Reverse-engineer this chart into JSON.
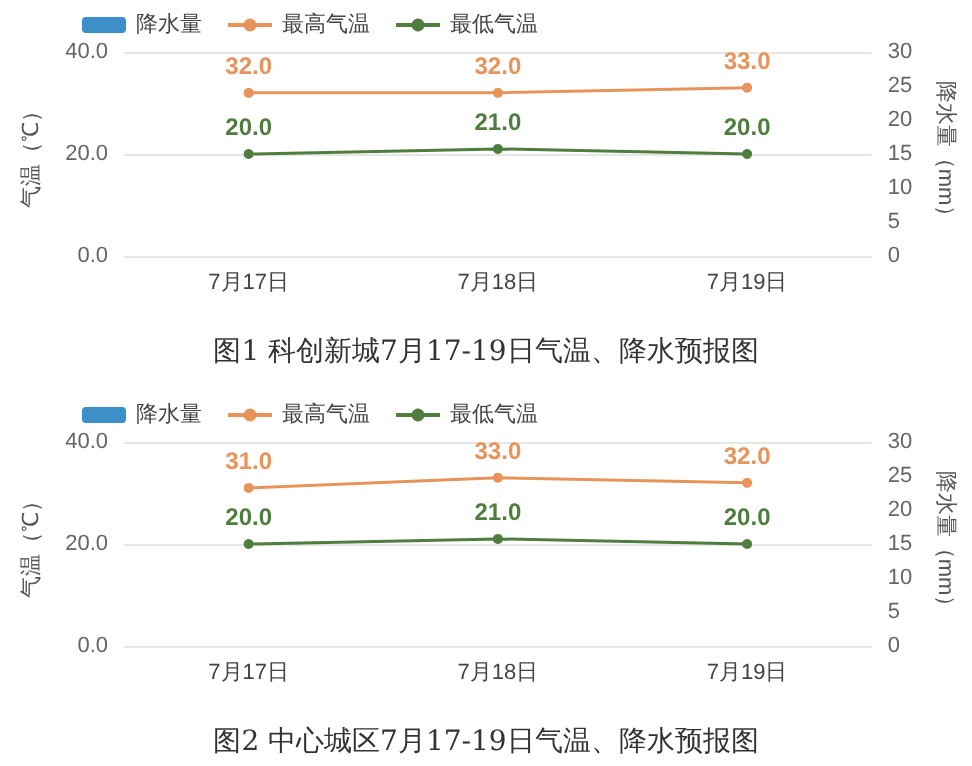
{
  "chart_data": [
    {
      "type": "line",
      "title": "图1 科创新城7月17-19日气温、降水预报图",
      "ylabel": "气温（℃）",
      "y2label": "降水量（mm）",
      "categories": [
        "7月17日",
        "7月18日",
        "7月19日"
      ],
      "series": [
        {
          "name": "降水量",
          "type": "bar",
          "color": "#3d8fc9",
          "values": [
            null,
            null,
            null
          ]
        },
        {
          "name": "最高气温",
          "color": "#e8935a",
          "values": [
            32.0,
            32.0,
            33.0
          ],
          "value_labels": [
            "32.0",
            "32.0",
            "33.0"
          ]
        },
        {
          "name": "最低气温",
          "color": "#4e7d3e",
          "values": [
            20.0,
            21.0,
            20.0
          ],
          "value_labels": [
            "20.0",
            "21.0",
            "20.0"
          ]
        }
      ],
      "ylim": [
        0,
        40
      ],
      "yticks": [
        {
          "value": 0,
          "label": "0.0"
        },
        {
          "value": 20,
          "label": "20.0"
        },
        {
          "value": 40,
          "label": "40.0"
        }
      ],
      "y2lim": [
        0,
        30
      ],
      "y2ticks": [
        0,
        5,
        10,
        15,
        20,
        25,
        30
      ],
      "grid": "y",
      "legend": "top left",
      "marker": "circle"
    },
    {
      "type": "line",
      "title": "图2 中心城区7月17-19日气温、降水预报图",
      "ylabel": "气温（℃）",
      "y2label": "降水量（mm）",
      "categories": [
        "7月17日",
        "7月18日",
        "7月19日"
      ],
      "series": [
        {
          "name": "降水量",
          "type": "bar",
          "color": "#3d8fc9",
          "values": [
            null,
            null,
            null
          ]
        },
        {
          "name": "最高气温",
          "color": "#e8935a",
          "values": [
            31.0,
            33.0,
            32.0
          ],
          "value_labels": [
            "31.0",
            "33.0",
            "32.0"
          ]
        },
        {
          "name": "最低气温",
          "color": "#4e7d3e",
          "values": [
            20.0,
            21.0,
            20.0
          ],
          "value_labels": [
            "20.0",
            "21.0",
            "20.0"
          ]
        }
      ],
      "ylim": [
        0,
        40
      ],
      "yticks": [
        {
          "value": 0,
          "label": "0.0"
        },
        {
          "value": 20,
          "label": "20.0"
        },
        {
          "value": 40,
          "label": "40.0"
        }
      ],
      "y2lim": [
        0,
        30
      ],
      "y2ticks": [
        0,
        5,
        10,
        15,
        20,
        25,
        30
      ],
      "grid": "y",
      "legend": "top left",
      "marker": "circle"
    }
  ]
}
